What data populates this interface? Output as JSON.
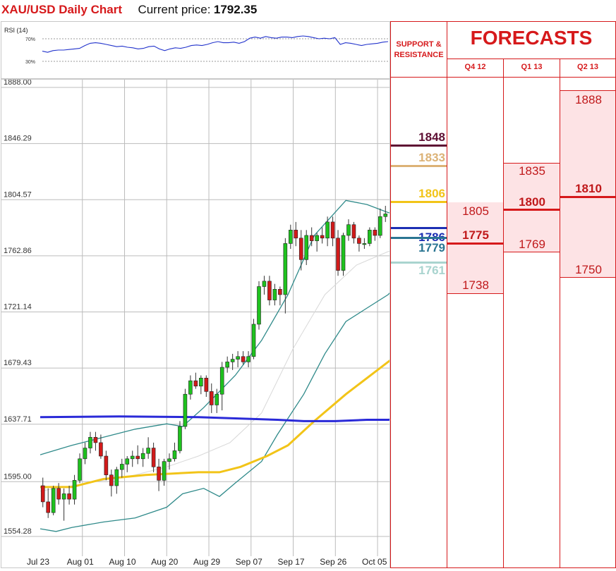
{
  "header": {
    "title": "XAU/USD Daily Chart",
    "price_label": "Current price:",
    "price_value": "1792.35"
  },
  "rsi": {
    "label": "RSI (14)",
    "levels": [
      "70%",
      "30%"
    ]
  },
  "chart_data": {
    "type": "candlestick",
    "title": "XAU/USD Daily Chart",
    "ylim": [
      1554.28,
      1888.0
    ],
    "y_ticks": [
      "1888.00",
      "1846.29",
      "1804.57",
      "1762.86",
      "1721.14",
      "1679.43",
      "1637.71",
      "1595.00",
      "1554.28"
    ],
    "x_ticks": [
      "Jul 23",
      "Aug 01",
      "Aug 10",
      "Aug 20",
      "Aug 29",
      "Sep 07",
      "Sep 17",
      "Sep 26",
      "Oct 05"
    ],
    "candles": [
      [
        1592,
        1598,
        1576,
        1580
      ],
      [
        1580,
        1590,
        1568,
        1572
      ],
      [
        1572,
        1592,
        1570,
        1590
      ],
      [
        1590,
        1594,
        1578,
        1582
      ],
      [
        1582,
        1590,
        1566,
        1586
      ],
      [
        1586,
        1592,
        1578,
        1582
      ],
      [
        1582,
        1600,
        1578,
        1596
      ],
      [
        1596,
        1616,
        1594,
        1612
      ],
      [
        1612,
        1624,
        1608,
        1620
      ],
      [
        1620,
        1632,
        1616,
        1628
      ],
      [
        1628,
        1632,
        1618,
        1624
      ],
      [
        1624,
        1630,
        1612,
        1614
      ],
      [
        1614,
        1618,
        1596,
        1600
      ],
      [
        1600,
        1604,
        1584,
        1592
      ],
      [
        1592,
        1606,
        1586,
        1604
      ],
      [
        1604,
        1612,
        1598,
        1608
      ],
      [
        1608,
        1614,
        1602,
        1612
      ],
      [
        1612,
        1618,
        1606,
        1614
      ],
      [
        1614,
        1622,
        1608,
        1612
      ],
      [
        1612,
        1620,
        1606,
        1616
      ],
      [
        1616,
        1628,
        1612,
        1620
      ],
      [
        1620,
        1624,
        1602,
        1606
      ],
      [
        1606,
        1612,
        1588,
        1596
      ],
      [
        1596,
        1612,
        1592,
        1610
      ],
      [
        1610,
        1616,
        1604,
        1612
      ],
      [
        1612,
        1624,
        1610,
        1618
      ],
      [
        1618,
        1640,
        1616,
        1636
      ],
      [
        1636,
        1664,
        1634,
        1660
      ],
      [
        1660,
        1674,
        1656,
        1670
      ],
      [
        1670,
        1676,
        1664,
        1666
      ],
      [
        1666,
        1674,
        1660,
        1672
      ],
      [
        1672,
        1674,
        1658,
        1662
      ],
      [
        1662,
        1668,
        1646,
        1652
      ],
      [
        1652,
        1664,
        1646,
        1660
      ],
      [
        1660,
        1684,
        1648,
        1680
      ],
      [
        1680,
        1688,
        1676,
        1684
      ],
      [
        1684,
        1690,
        1678,
        1686
      ],
      [
        1686,
        1692,
        1680,
        1688
      ],
      [
        1688,
        1692,
        1682,
        1684
      ],
      [
        1684,
        1692,
        1680,
        1688
      ],
      [
        1688,
        1716,
        1686,
        1712
      ],
      [
        1712,
        1744,
        1708,
        1740
      ],
      [
        1740,
        1748,
        1734,
        1744
      ],
      [
        1744,
        1748,
        1726,
        1730
      ],
      [
        1730,
        1742,
        1726,
        1738
      ],
      [
        1738,
        1740,
        1726,
        1734
      ],
      [
        1734,
        1776,
        1720,
        1772
      ],
      [
        1772,
        1786,
        1768,
        1782
      ],
      [
        1782,
        1788,
        1770,
        1776
      ],
      [
        1776,
        1782,
        1752,
        1760
      ],
      [
        1760,
        1782,
        1756,
        1778
      ],
      [
        1778,
        1784,
        1770,
        1774
      ],
      [
        1774,
        1780,
        1766,
        1778
      ],
      [
        1778,
        1784,
        1772,
        1776
      ],
      [
        1776,
        1792,
        1770,
        1788
      ],
      [
        1788,
        1792,
        1770,
        1776
      ],
      [
        1776,
        1782,
        1748,
        1752
      ],
      [
        1752,
        1780,
        1748,
        1778
      ],
      [
        1778,
        1790,
        1774,
        1786
      ],
      [
        1786,
        1788,
        1772,
        1776
      ],
      [
        1776,
        1778,
        1766,
        1772
      ],
      [
        1772,
        1776,
        1768,
        1772
      ],
      [
        1772,
        1784,
        1770,
        1782
      ],
      [
        1782,
        1784,
        1774,
        1778
      ],
      [
        1778,
        1798,
        1776,
        1792
      ],
      [
        1792,
        1800,
        1788,
        1794
      ]
    ],
    "indicator_lines": [
      {
        "name": "slow-ma",
        "color": "#2a2ad8",
        "points": [
          [
            0,
            1643
          ],
          [
            15,
            1643.5
          ],
          [
            30,
            1643
          ],
          [
            45,
            1641
          ],
          [
            50,
            1640
          ],
          [
            56,
            1640
          ],
          [
            62,
            1641
          ],
          [
            66,
            1641
          ],
          [
            70,
            1642
          ]
        ]
      },
      {
        "name": "fast-ma",
        "color": "#f2c418",
        "points": [
          [
            0,
            1591
          ],
          [
            6,
            1591
          ],
          [
            12,
            1597
          ],
          [
            20,
            1600
          ],
          [
            30,
            1602
          ],
          [
            34,
            1602
          ],
          [
            38,
            1606
          ],
          [
            43,
            1614
          ],
          [
            47,
            1622
          ],
          [
            52,
            1640
          ],
          [
            58,
            1660
          ],
          [
            64,
            1678
          ],
          [
            70,
            1696
          ]
        ]
      },
      {
        "name": "bb-upper",
        "color": "#2f8a8a",
        "points": [
          [
            0,
            1615
          ],
          [
            6,
            1622
          ],
          [
            12,
            1628
          ],
          [
            18,
            1634
          ],
          [
            24,
            1638
          ],
          [
            27,
            1636
          ],
          [
            31,
            1650
          ],
          [
            37,
            1674
          ],
          [
            42,
            1700
          ],
          [
            47,
            1734
          ],
          [
            52,
            1778
          ],
          [
            58,
            1804
          ],
          [
            62,
            1801
          ],
          [
            66,
            1795
          ],
          [
            70,
            1792
          ]
        ]
      },
      {
        "name": "bb-lower",
        "color": "#2f8a8a",
        "points": [
          [
            0,
            1560
          ],
          [
            3,
            1558
          ],
          [
            6,
            1561
          ],
          [
            12,
            1565
          ],
          [
            18,
            1568
          ],
          [
            24,
            1576
          ],
          [
            27,
            1586
          ],
          [
            31,
            1590
          ],
          [
            34,
            1584
          ],
          [
            37,
            1594
          ],
          [
            42,
            1610
          ],
          [
            45,
            1630
          ],
          [
            50,
            1660
          ],
          [
            54,
            1690
          ],
          [
            58,
            1714
          ],
          [
            62,
            1724
          ],
          [
            66,
            1734
          ],
          [
            70,
            1750
          ]
        ]
      },
      {
        "name": "bb-mid",
        "color": "#d8d8d8",
        "points": [
          [
            0,
            1588
          ],
          [
            6,
            1592
          ],
          [
            12,
            1596
          ],
          [
            18,
            1600
          ],
          [
            24,
            1606
          ],
          [
            30,
            1614
          ],
          [
            36,
            1624
          ],
          [
            42,
            1646
          ],
          [
            48,
            1694
          ],
          [
            54,
            1734
          ],
          [
            60,
            1756
          ],
          [
            66,
            1766
          ],
          [
            70,
            1770
          ]
        ]
      }
    ],
    "rsi_values": [
      48,
      46,
      49,
      50,
      50,
      51,
      52,
      53,
      58,
      62,
      63,
      62,
      60,
      58,
      56,
      57,
      55,
      54,
      52,
      53,
      56,
      57,
      52,
      49,
      52,
      54,
      53,
      55,
      58,
      59,
      58,
      60,
      63,
      65,
      63,
      63,
      64,
      62,
      65,
      71,
      73,
      71,
      74,
      72,
      71,
      73,
      73,
      72,
      74,
      75,
      74,
      72,
      70,
      71,
      70,
      72,
      60,
      63,
      62,
      60,
      58,
      60,
      61,
      62,
      64,
      65
    ]
  },
  "levels": {
    "header": "SUPPORT & RESISTANCE",
    "items": [
      {
        "value": "1848",
        "color": "#5e0f33"
      },
      {
        "value": "1833",
        "color": "#dcb276"
      },
      {
        "value": "1806",
        "color": "#f2c418"
      },
      {
        "value": "1786",
        "color": "#1c2fb3"
      },
      {
        "value": "1779",
        "color": "#2a7592"
      },
      {
        "value": "1761",
        "color": "#a9d4cf"
      }
    ]
  },
  "forecasts": {
    "title": "FORECASTS",
    "columns": [
      {
        "label": "Q4 12",
        "high": "1805",
        "mid": "1775",
        "low": "1738"
      },
      {
        "label": "Q1 13",
        "high": "1835",
        "mid": "1800",
        "low": "1769"
      },
      {
        "label": "Q2 13",
        "high": "1888",
        "mid": "1810",
        "low": "1750"
      }
    ]
  }
}
